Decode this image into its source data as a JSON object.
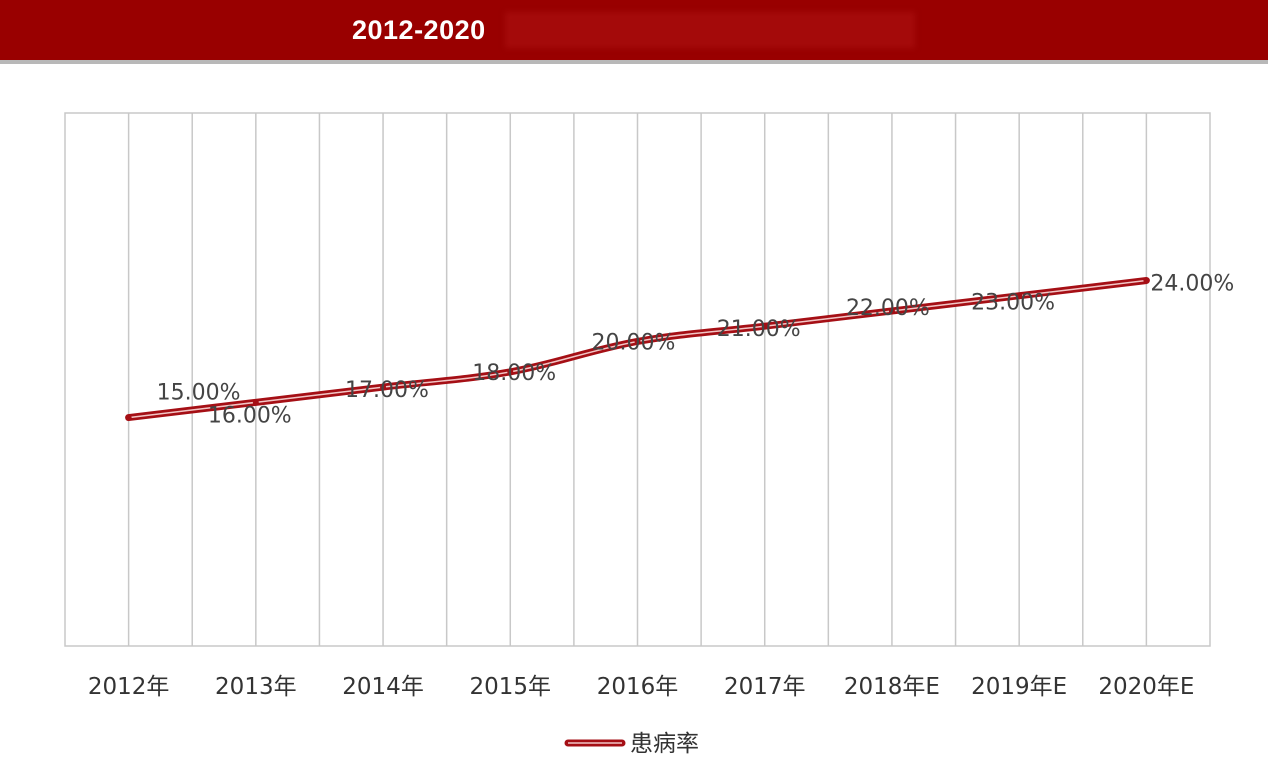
{
  "header": {
    "title": "2012-2020"
  },
  "colors": {
    "header_bg": "#990000",
    "series_line": "#a50f15",
    "grid": "#c8c8c8"
  },
  "chart_data": {
    "type": "line",
    "title": "2012-2020",
    "categories": [
      "2012年",
      "2013年",
      "2014年",
      "2015年",
      "2016年",
      "2017年",
      "2018年E",
      "2019年E",
      "2020年E"
    ],
    "series": [
      {
        "name": "患病率",
        "values": [
          15,
          16,
          17,
          18,
          20,
          21,
          22,
          23,
          24
        ],
        "labels": [
          "15.00%",
          "16.00%",
          "17.00%",
          "18.00%",
          "20.00%",
          "21.00%",
          "22.00%",
          "23.00%",
          "24.00%"
        ]
      }
    ],
    "ylim": [
      0,
      35
    ],
    "y_axis_visible": false,
    "grid": "vertical",
    "legend": "bottom-center"
  }
}
